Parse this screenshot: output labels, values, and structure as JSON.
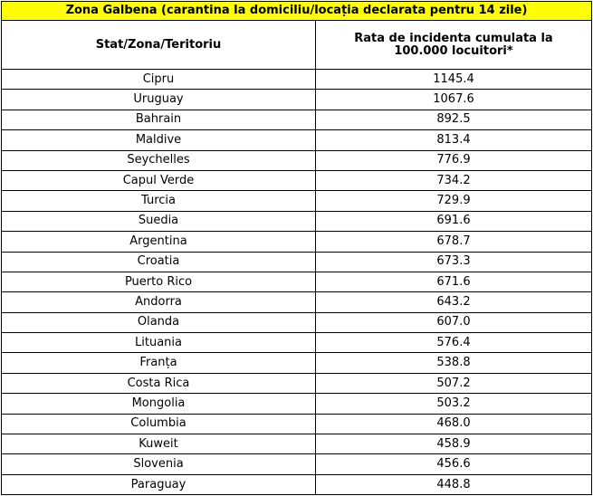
{
  "table": {
    "title": "Zona Galbena (carantina la domiciliu/locația declarata pentru 14 zile)",
    "headers": {
      "col1": "Stat/Zona/Teritoriu",
      "col2_line1": "Rata de incidenta cumulata la",
      "col2_line2": "100.000 locuitori*"
    },
    "rows": [
      {
        "country": "Cipru",
        "rate": "1145.4"
      },
      {
        "country": "Uruguay",
        "rate": "1067.6"
      },
      {
        "country": "Bahrain",
        "rate": "892.5"
      },
      {
        "country": "Maldive",
        "rate": "813.4"
      },
      {
        "country": "Seychelles",
        "rate": "776.9"
      },
      {
        "country": "Capul Verde",
        "rate": "734.2"
      },
      {
        "country": "Turcia",
        "rate": "729.9"
      },
      {
        "country": "Suedia",
        "rate": "691.6"
      },
      {
        "country": "Argentina",
        "rate": "678.7"
      },
      {
        "country": "Croatia",
        "rate": "673.3"
      },
      {
        "country": "Puerto Rico",
        "rate": "671.6"
      },
      {
        "country": "Andorra",
        "rate": "643.2"
      },
      {
        "country": "Olanda",
        "rate": "607.0"
      },
      {
        "country": "Lituania",
        "rate": "576.4"
      },
      {
        "country": "Franța",
        "rate": "538.8"
      },
      {
        "country": "Costa Rica",
        "rate": "507.2"
      },
      {
        "country": "Mongolia",
        "rate": "503.2"
      },
      {
        "country": "Columbia",
        "rate": "468.0"
      },
      {
        "country": "Kuweit",
        "rate": "458.9"
      },
      {
        "country": "Slovenia",
        "rate": "456.6"
      },
      {
        "country": "Paraguay",
        "rate": "448.8"
      }
    ]
  },
  "colors": {
    "title_background": "#ffff00",
    "border": "#000000"
  }
}
